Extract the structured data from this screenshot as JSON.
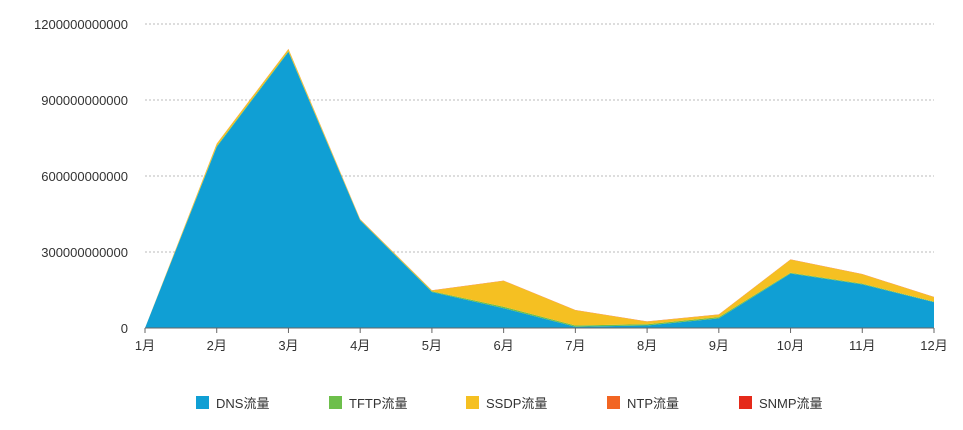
{
  "chart_data": {
    "type": "area",
    "stacked": true,
    "categories": [
      "1月",
      "2月",
      "3月",
      "4月",
      "5月",
      "6月",
      "7月",
      "8月",
      "9月",
      "10月",
      "11月",
      "12月"
    ],
    "series": [
      {
        "name": "DNS流量",
        "color": "#109fd4",
        "values": [
          0,
          715000000000,
          1090000000000,
          425000000000,
          142000000000,
          78000000000,
          5000000000,
          10000000000,
          38000000000,
          215000000000,
          172000000000,
          102000000000
        ]
      },
      {
        "name": "TFTP流量",
        "color": "#6dbf4b",
        "values": [
          0,
          3000000000,
          3000000000,
          2000000000,
          3000000000,
          6000000000,
          5000000000,
          5000000000,
          5000000000,
          3000000000,
          3000000000,
          2000000000
        ]
      },
      {
        "name": "SSDP流量",
        "color": "#f5c022",
        "values": [
          0,
          9000000000,
          8000000000,
          2000000000,
          3000000000,
          102000000000,
          60000000000,
          10000000000,
          10000000000,
          52000000000,
          37000000000,
          18000000000
        ]
      },
      {
        "name": "NTP流量",
        "color": "#f26522",
        "values": [
          0,
          1000000000,
          1000000000,
          1000000000,
          1000000000,
          1000000000,
          1000000000,
          1000000000,
          1000000000,
          1000000000,
          1000000000,
          1000000000
        ]
      },
      {
        "name": "SNMP流量",
        "color": "#e52a1a",
        "values": [
          0,
          0,
          0,
          0,
          0,
          0,
          0,
          0,
          0,
          0,
          0,
          0
        ]
      }
    ],
    "y_ticks": [
      "0",
      "300000000000",
      "600000000000",
      "900000000000",
      "1200000000000"
    ],
    "y_tick_values": [
      0,
      300000000000,
      600000000000,
      900000000000,
      1200000000000
    ],
    "ylim": [
      0,
      1200000000000
    ],
    "grid": true,
    "legend_position": "bottom"
  }
}
